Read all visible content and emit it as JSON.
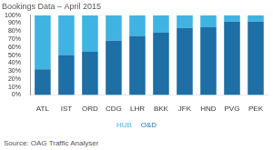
{
  "chart_data": {
    "type": "bar",
    "title": "Bookings Data – April 2015",
    "source": "Source: OAG Traffic Analyser",
    "categories": [
      "ATL",
      "IST",
      "ORD",
      "CDG",
      "LHR",
      "BKK",
      "JFK",
      "HND",
      "PVG",
      "PEK"
    ],
    "series": [
      {
        "name": "HUB",
        "color": "#3fb4e3",
        "values": [
          68,
          50,
          46,
          32,
          26,
          22,
          16,
          15,
          8,
          8
        ]
      },
      {
        "name": "O&D",
        "color": "#1d6fa5",
        "values": [
          32,
          50,
          54,
          68,
          74,
          78,
          84,
          85,
          92,
          92
        ]
      }
    ],
    "stacked": true,
    "ylim": [
      0,
      100
    ],
    "yticks": [
      {
        "value": 0,
        "label": "0%"
      },
      {
        "value": 10,
        "label": "10%"
      },
      {
        "value": 20,
        "label": "20%"
      },
      {
        "value": 30,
        "label": "30%"
      },
      {
        "value": 40,
        "label": "40%"
      },
      {
        "value": 50,
        "label": "50%"
      },
      {
        "value": 60,
        "label": "60%"
      },
      {
        "value": 70,
        "label": "70%"
      },
      {
        "value": 80,
        "label": "80%"
      },
      {
        "value": 90,
        "label": "90%"
      },
      {
        "value": 100,
        "label": "100%"
      }
    ],
    "grid": false,
    "legend": "bottom"
  }
}
